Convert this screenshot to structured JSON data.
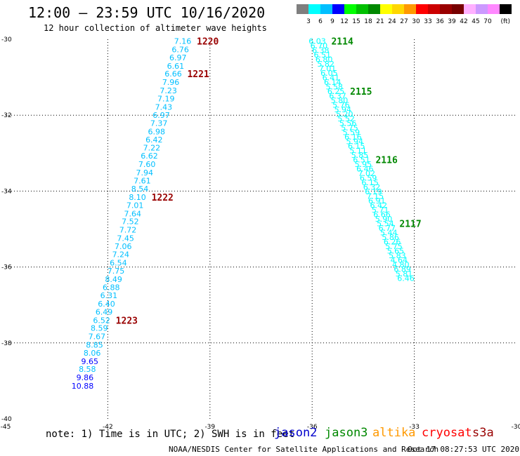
{
  "header": {
    "title": "12:00 – 23:59 UTC 10/16/2020",
    "subtitle": "12 hour collection of altimeter wave heights"
  },
  "legend": {
    "unit": "(ft)",
    "bins": [
      {
        "label": "",
        "color": "#7f7f7f"
      },
      {
        "label": "3",
        "color": "#00ffff"
      },
      {
        "label": "6",
        "color": "#00bfff"
      },
      {
        "label": "9",
        "color": "#0000ff"
      },
      {
        "label": "12",
        "color": "#00ff00"
      },
      {
        "label": "15",
        "color": "#00c000"
      },
      {
        "label": "18",
        "color": "#008800"
      },
      {
        "label": "21",
        "color": "#ffff00"
      },
      {
        "label": "24",
        "color": "#ffd700"
      },
      {
        "label": "27",
        "color": "#ff9900"
      },
      {
        "label": "30",
        "color": "#ff0000"
      },
      {
        "label": "33",
        "color": "#cc0000"
      },
      {
        "label": "36",
        "color": "#990000"
      },
      {
        "label": "39",
        "color": "#770000"
      },
      {
        "label": "42",
        "color": "#ffb0ff"
      },
      {
        "label": "45",
        "color": "#cc99ff"
      },
      {
        "label": "70",
        "color": "#ff88ff"
      },
      {
        "label": "",
        "color": "#000000"
      }
    ]
  },
  "footer": {
    "note": "note: 1) Time is in UTC; 2) SWH is in feet",
    "satellites": [
      {
        "name": "jason2",
        "color": "#0000cc"
      },
      {
        "name": "jason3",
        "color": "#008800"
      },
      {
        "name": "altika",
        "color": "#ff9900"
      },
      {
        "name": "cryosat",
        "color": "#ff0000"
      },
      {
        "name": "s3a",
        "color": "#990000"
      }
    ],
    "credit": "NOAA/NESDIS Center for Satellite Applications and Research",
    "timestamp": "Oct 17 08:27:53 UTC 2020"
  },
  "chart_data": {
    "type": "scatter",
    "xlim": [
      -45,
      -30
    ],
    "ylim": [
      -40,
      -30
    ],
    "x_ticks": [
      -45,
      -42,
      -39,
      -36,
      -33,
      -30
    ],
    "y_ticks": [
      -30,
      -32,
      -34,
      -36,
      -38,
      -40
    ],
    "grid": true,
    "series": [
      {
        "name": "1220-1223",
        "color_low": "#00bfff",
        "color_high": "#0000ff",
        "points": [
          {
            "x": -39.8,
            "y": -30.05,
            "v": "7.16"
          },
          {
            "x": -39.87,
            "y": -30.27,
            "v": "6.76"
          },
          {
            "x": -39.94,
            "y": -30.48,
            "v": "6.97"
          },
          {
            "x": -40.01,
            "y": -30.7,
            "v": "6.61"
          },
          {
            "x": -40.08,
            "y": -30.91,
            "v": "6.66"
          },
          {
            "x": -40.15,
            "y": -31.13,
            "v": "7.96"
          },
          {
            "x": -40.22,
            "y": -31.35,
            "v": "7.23"
          },
          {
            "x": -40.29,
            "y": -31.56,
            "v": "7.19"
          },
          {
            "x": -40.36,
            "y": -31.78,
            "v": "7.43"
          },
          {
            "x": -40.43,
            "y": -32.0,
            "v": "6.97"
          },
          {
            "x": -40.5,
            "y": -32.21,
            "v": "7.37"
          },
          {
            "x": -40.57,
            "y": -32.43,
            "v": "6.98"
          },
          {
            "x": -40.64,
            "y": -32.64,
            "v": "6.42"
          },
          {
            "x": -40.71,
            "y": -32.86,
            "v": "7.22"
          },
          {
            "x": -40.78,
            "y": -33.07,
            "v": "6.62"
          },
          {
            "x": -40.85,
            "y": -33.29,
            "v": "7.60"
          },
          {
            "x": -40.92,
            "y": -33.51,
            "v": "7.94"
          },
          {
            "x": -40.99,
            "y": -33.72,
            "v": "7.61"
          },
          {
            "x": -41.06,
            "y": -33.94,
            "v": "8.54"
          },
          {
            "x": -41.13,
            "y": -34.16,
            "v": "8.10"
          },
          {
            "x": -41.2,
            "y": -34.37,
            "v": "7.01"
          },
          {
            "x": -41.27,
            "y": -34.59,
            "v": "7.64"
          },
          {
            "x": -41.34,
            "y": -34.8,
            "v": "7.52"
          },
          {
            "x": -41.41,
            "y": -35.02,
            "v": "7.72"
          },
          {
            "x": -41.48,
            "y": -35.24,
            "v": "7.45"
          },
          {
            "x": -41.55,
            "y": -35.45,
            "v": "7.06"
          },
          {
            "x": -41.62,
            "y": -35.67,
            "v": "7.24"
          },
          {
            "x": -41.69,
            "y": -35.89,
            "v": "6.54"
          },
          {
            "x": -41.76,
            "y": -36.1,
            "v": "7.75"
          },
          {
            "x": -41.83,
            "y": -36.32,
            "v": "8.49"
          },
          {
            "x": -41.9,
            "y": -36.53,
            "v": "6.88"
          },
          {
            "x": -41.97,
            "y": -36.75,
            "v": "6.31"
          },
          {
            "x": -42.04,
            "y": -36.97,
            "v": "6.40"
          },
          {
            "x": -42.11,
            "y": -37.18,
            "v": "6.49"
          },
          {
            "x": -42.18,
            "y": -37.4,
            "v": "6.52"
          },
          {
            "x": -42.25,
            "y": -37.61,
            "v": "8.59"
          },
          {
            "x": -42.32,
            "y": -37.83,
            "v": "7.67"
          },
          {
            "x": -42.39,
            "y": -38.05,
            "v": "8.85"
          },
          {
            "x": -42.46,
            "y": -38.26,
            "v": "8.06"
          },
          {
            "x": -42.53,
            "y": -38.48,
            "v": "9.65"
          },
          {
            "x": -42.6,
            "y": -38.69,
            "v": "8.58"
          },
          {
            "x": -42.67,
            "y": -38.91,
            "v": "9.86"
          },
          {
            "x": -42.74,
            "y": -39.13,
            "v": "10.88"
          }
        ]
      },
      {
        "name": "2114-2117",
        "color_low": "#00ffff",
        "color_high": "#00bfff",
        "points": [
          {
            "x": -35.85,
            "y": -30.05,
            "v": "6.03"
          },
          {
            "x": -35.8,
            "y": -30.17,
            "v": "6.70"
          },
          {
            "x": -35.75,
            "y": -30.29,
            "v": "6.38"
          },
          {
            "x": -35.7,
            "y": -30.41,
            "v": "6.51"
          },
          {
            "x": -35.65,
            "y": -30.53,
            "v": "6.80"
          },
          {
            "x": -35.6,
            "y": -30.65,
            "v": "5.82"
          },
          {
            "x": -35.55,
            "y": -30.77,
            "v": "7.01"
          },
          {
            "x": -35.5,
            "y": -30.89,
            "v": "6.05"
          },
          {
            "x": -35.45,
            "y": -31.01,
            "v": "6.41"
          },
          {
            "x": -35.4,
            "y": -31.13,
            "v": "6.14"
          },
          {
            "x": -35.35,
            "y": -31.25,
            "v": "5.58"
          },
          {
            "x": -35.3,
            "y": -31.37,
            "v": "6.25"
          },
          {
            "x": -35.25,
            "y": -31.49,
            "v": "6.37"
          },
          {
            "x": -35.2,
            "y": -31.61,
            "v": "5.80"
          },
          {
            "x": -35.15,
            "y": -31.73,
            "v": "5.76"
          },
          {
            "x": -35.1,
            "y": -31.85,
            "v": "5.94"
          },
          {
            "x": -35.05,
            "y": -31.97,
            "v": "5.20"
          },
          {
            "x": -35.0,
            "y": -32.09,
            "v": "5.52"
          },
          {
            "x": -34.95,
            "y": -32.21,
            "v": "5.56"
          },
          {
            "x": -34.9,
            "y": -32.33,
            "v": "5.75"
          },
          {
            "x": -34.85,
            "y": -32.45,
            "v": "5.59"
          },
          {
            "x": -34.8,
            "y": -32.57,
            "v": "6.16"
          },
          {
            "x": -34.75,
            "y": -32.69,
            "v": "5.94"
          },
          {
            "x": -34.7,
            "y": -32.81,
            "v": "6.15"
          },
          {
            "x": -34.65,
            "y": -32.93,
            "v": "5.11"
          },
          {
            "x": -34.6,
            "y": -33.05,
            "v": "5.85"
          },
          {
            "x": -34.55,
            "y": -33.17,
            "v": "6.51"
          },
          {
            "x": -34.5,
            "y": -33.29,
            "v": "5.95"
          },
          {
            "x": -34.45,
            "y": -33.41,
            "v": "6.46"
          },
          {
            "x": -34.4,
            "y": -33.53,
            "v": "7.02"
          },
          {
            "x": -34.35,
            "y": -33.65,
            "v": "6.59"
          },
          {
            "x": -34.3,
            "y": -33.77,
            "v": "6.15"
          },
          {
            "x": -34.25,
            "y": -33.89,
            "v": "6.32"
          },
          {
            "x": -34.2,
            "y": -34.01,
            "v": "6.19"
          },
          {
            "x": -34.15,
            "y": -34.13,
            "v": "7.15"
          },
          {
            "x": -34.1,
            "y": -34.25,
            "v": "6.91"
          },
          {
            "x": -34.05,
            "y": -34.37,
            "v": "6.42"
          },
          {
            "x": -34.0,
            "y": -34.49,
            "v": "5.71"
          },
          {
            "x": -33.95,
            "y": -34.61,
            "v": "6.66"
          },
          {
            "x": -33.9,
            "y": -34.73,
            "v": "5.90"
          },
          {
            "x": -33.85,
            "y": -34.85,
            "v": "5.54"
          },
          {
            "x": -33.8,
            "y": -34.97,
            "v": "6.77"
          },
          {
            "x": -33.75,
            "y": -35.09,
            "v": "5.44"
          },
          {
            "x": -33.7,
            "y": -35.21,
            "v": "5.86"
          },
          {
            "x": -33.65,
            "y": -35.33,
            "v": "6.26"
          },
          {
            "x": -33.6,
            "y": -35.45,
            "v": "5.75"
          },
          {
            "x": -33.55,
            "y": -35.57,
            "v": "5.65"
          },
          {
            "x": -33.5,
            "y": -35.69,
            "v": "5.83"
          },
          {
            "x": -33.45,
            "y": -35.81,
            "v": "4.64"
          },
          {
            "x": -33.4,
            "y": -35.93,
            "v": "4.80"
          },
          {
            "x": -33.35,
            "y": -36.05,
            "v": "6.89"
          },
          {
            "x": -33.3,
            "y": -36.17,
            "v": "5.81"
          },
          {
            "x": -33.25,
            "y": -36.29,
            "v": "6.46"
          }
        ]
      }
    ],
    "annotations": [
      {
        "text": "1220",
        "x": -39.8,
        "y": -30.05,
        "color": "#990000"
      },
      {
        "text": "1221",
        "x": -40.08,
        "y": -30.91,
        "color": "#990000"
      },
      {
        "text": "1222",
        "x": -41.13,
        "y": -34.16,
        "color": "#990000"
      },
      {
        "text": "1223",
        "x": -42.18,
        "y": -37.4,
        "color": "#990000"
      },
      {
        "text": "2114",
        "x": -35.85,
        "y": -30.05,
        "color": "#008800"
      },
      {
        "text": "2115",
        "x": -35.3,
        "y": -31.37,
        "color": "#008800"
      },
      {
        "text": "2116",
        "x": -34.55,
        "y": -33.17,
        "color": "#008800"
      },
      {
        "text": "2117",
        "x": -33.85,
        "y": -34.85,
        "color": "#008800"
      }
    ]
  }
}
